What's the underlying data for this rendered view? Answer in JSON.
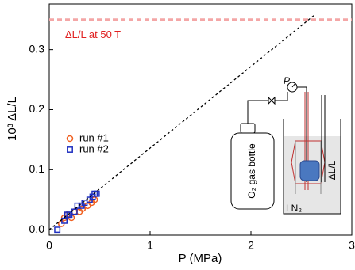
{
  "chart_data": {
    "type": "scatter",
    "x_label": "P (MPa)",
    "y_label": "10³ ΔL/L",
    "xlim": [
      0,
      3
    ],
    "ylim": [
      -0.009,
      0.376
    ],
    "xticks": [
      0,
      1,
      2,
      3
    ],
    "yticks": [
      {
        "value": 0.0,
        "label": "0.0"
      },
      {
        "value": 0.1,
        "label": "0.1"
      },
      {
        "value": 0.2,
        "label": "0.2"
      },
      {
        "value": 0.3,
        "label": "0.3"
      }
    ],
    "reference": {
      "value": 0.35,
      "label": "ΔL/L at 50 T",
      "color": "#f4a6a6"
    },
    "series": [
      {
        "name": "run #1",
        "color": "#f06020",
        "marker": "circle",
        "x": [
          0.12,
          0.15,
          0.18,
          0.22,
          0.25,
          0.3,
          0.33,
          0.38,
          0.42,
          0.45
        ],
        "values": [
          0.01,
          0.02,
          0.025,
          0.02,
          0.03,
          0.03,
          0.035,
          0.04,
          0.045,
          0.05
        ]
      },
      {
        "name": "run #2",
        "color": "#2030c0",
        "marker": "square",
        "x": [
          0.08,
          0.15,
          0.18,
          0.2,
          0.25,
          0.28,
          0.32,
          0.35,
          0.4,
          0.43,
          0.45,
          0.47
        ],
        "values": [
          0.0,
          0.015,
          0.025,
          0.025,
          0.03,
          0.04,
          0.04,
          0.045,
          0.05,
          0.055,
          0.06,
          0.06
        ]
      },
      {
        "color": "#000000",
        "marker": "dashed-line",
        "x": [
          0,
          2.64
        ],
        "values": [
          0,
          0.359
        ]
      }
    ],
    "annotations": [
      "O₂ gas bottle",
      "P",
      "LN₂",
      "ΔL/L"
    ]
  }
}
